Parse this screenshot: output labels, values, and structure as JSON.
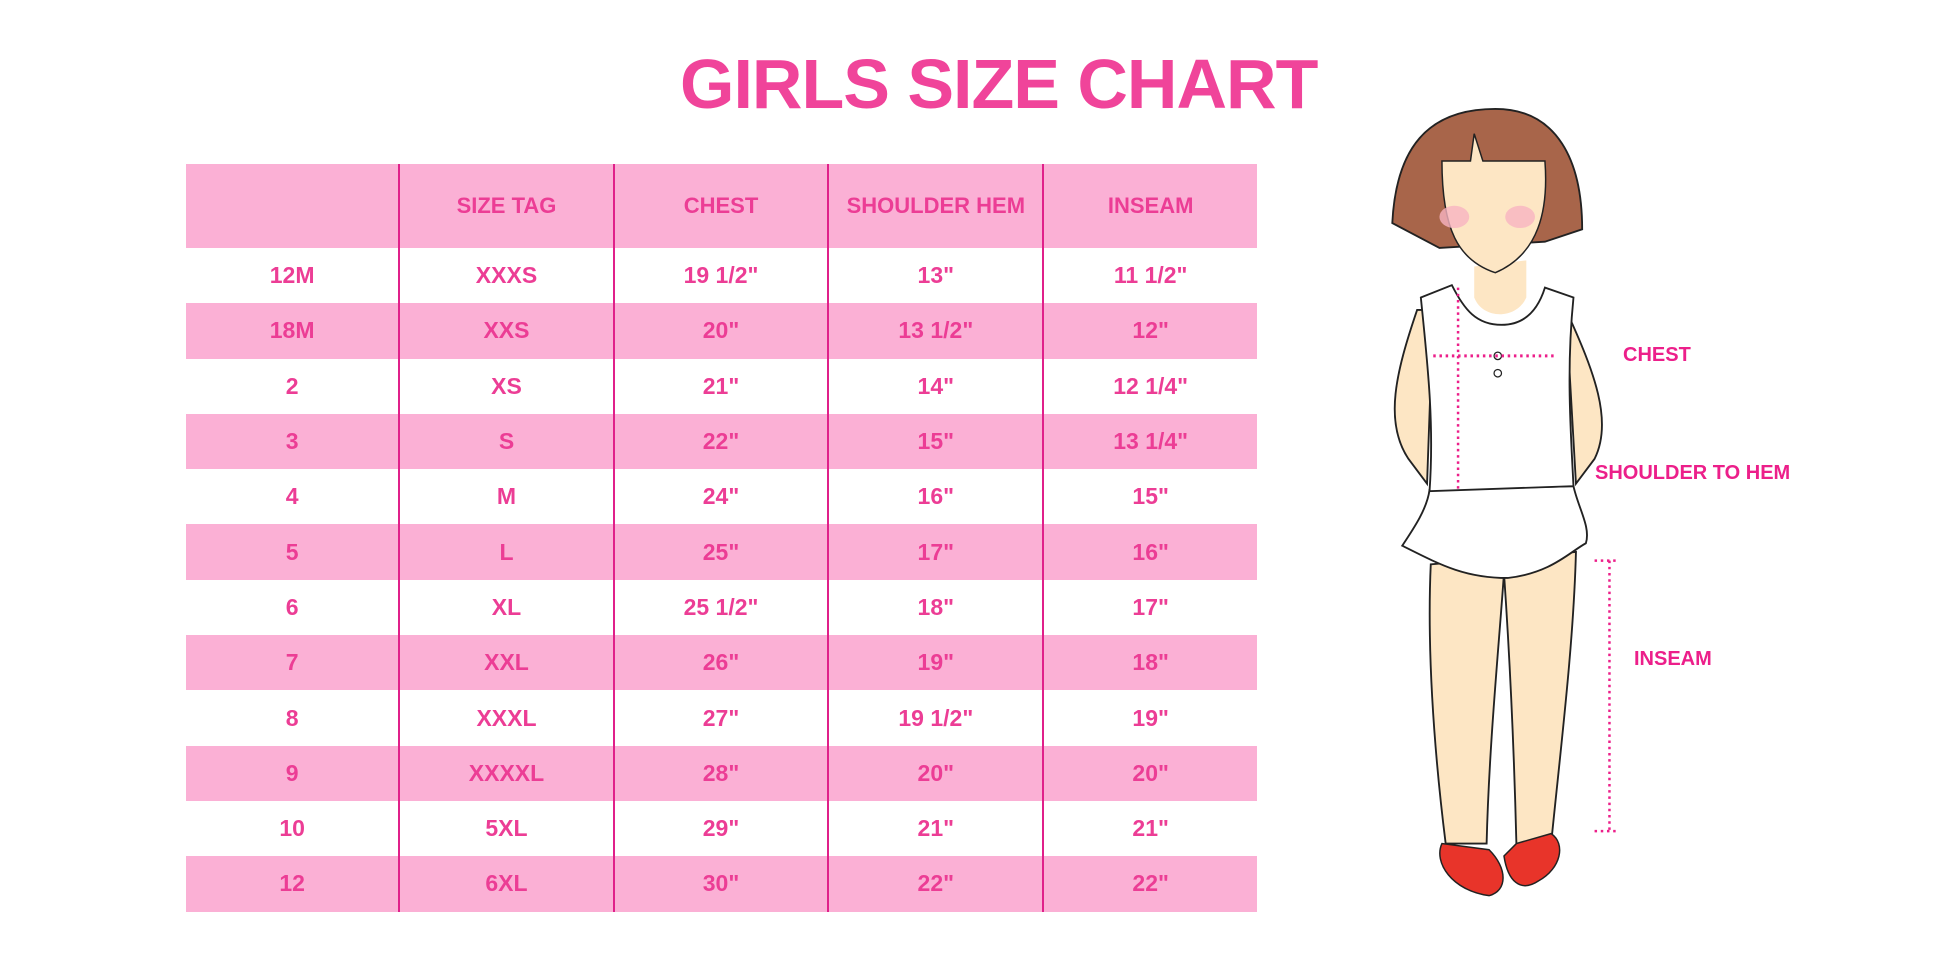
{
  "title": "GIRLS SIZE CHART",
  "table": {
    "headers": [
      "",
      "SIZE TAG",
      "CHEST",
      "SHOULDER HEM",
      "INSEAM"
    ],
    "rows": [
      [
        "12M",
        "XXXS",
        "19 1/2\"",
        "13\"",
        "11 1/2\""
      ],
      [
        "18M",
        "XXS",
        "20\"",
        "13 1/2\"",
        "12\""
      ],
      [
        "2",
        "XS",
        "21\"",
        "14\"",
        "12 1/4\""
      ],
      [
        "3",
        "S",
        "22\"",
        "15\"",
        "13 1/4\""
      ],
      [
        "4",
        "M",
        "24\"",
        "16\"",
        "15\""
      ],
      [
        "5",
        "L",
        "25\"",
        "17\"",
        "16\""
      ],
      [
        "6",
        "XL",
        "25 1/2\"",
        "18\"",
        "17\""
      ],
      [
        "7",
        "XXL",
        "26\"",
        "19\"",
        "18\""
      ],
      [
        "8",
        "XXXL",
        "27\"",
        "19 1/2\"",
        "19\""
      ],
      [
        "9",
        "XXXXL",
        "28\"",
        "20\"",
        "20\""
      ],
      [
        "10",
        "5XL",
        "29\"",
        "21\"",
        "21\""
      ],
      [
        "12",
        "6XL",
        "30\"",
        "22\"",
        "22\""
      ]
    ]
  },
  "figure": {
    "labels": {
      "chest": "CHEST",
      "shoulder_to_hem": "SHOULDER TO HEM",
      "inseam": "INSEAM"
    }
  },
  "colors": {
    "accent": "#ec3d95",
    "row_pink": "#fbb0d5",
    "divider": "#e0208a",
    "hair": "#a8654a",
    "skin": "#fde6c4",
    "shoes": "#e8342a"
  }
}
